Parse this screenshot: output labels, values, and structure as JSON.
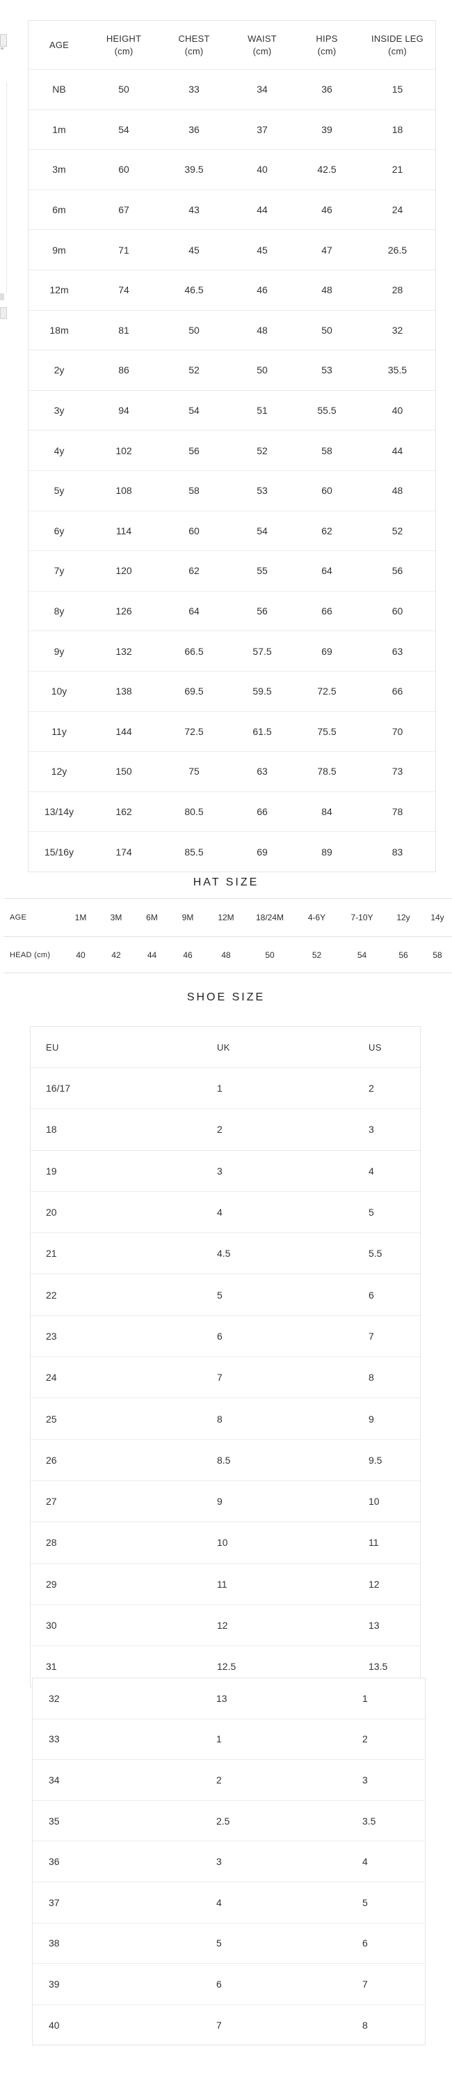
{
  "colors": {
    "background": "#ffffff",
    "text": "#333333",
    "title": "#222222",
    "border": "#e5e5e5",
    "row_separator": "#ececec"
  },
  "size_table": {
    "columns": [
      {
        "label": "AGE",
        "unit": ""
      },
      {
        "label": "HEIGHT",
        "unit": "(cm)"
      },
      {
        "label": "CHEST",
        "unit": "(cm)"
      },
      {
        "label": "WAIST",
        "unit": "(cm)"
      },
      {
        "label": "HIPS",
        "unit": "(cm)"
      },
      {
        "label": "INSIDE LEG",
        "unit": "(cm)"
      }
    ],
    "rows": [
      [
        "NB",
        "50",
        "33",
        "34",
        "36",
        "15"
      ],
      [
        "1m",
        "54",
        "36",
        "37",
        "39",
        "18"
      ],
      [
        "3m",
        "60",
        "39.5",
        "40",
        "42.5",
        "21"
      ],
      [
        "6m",
        "67",
        "43",
        "44",
        "46",
        "24"
      ],
      [
        "9m",
        "71",
        "45",
        "45",
        "47",
        "26.5"
      ],
      [
        "12m",
        "74",
        "46.5",
        "46",
        "48",
        "28"
      ],
      [
        "18m",
        "81",
        "50",
        "48",
        "50",
        "32"
      ],
      [
        "2y",
        "86",
        "52",
        "50",
        "53",
        "35.5"
      ],
      [
        "3y",
        "94",
        "54",
        "51",
        "55.5",
        "40"
      ],
      [
        "4y",
        "102",
        "56",
        "52",
        "58",
        "44"
      ],
      [
        "5y",
        "108",
        "58",
        "53",
        "60",
        "48"
      ],
      [
        "6y",
        "114",
        "60",
        "54",
        "62",
        "52"
      ],
      [
        "7y",
        "120",
        "62",
        "55",
        "64",
        "56"
      ],
      [
        "8y",
        "126",
        "64",
        "56",
        "66",
        "60"
      ],
      [
        "9y",
        "132",
        "66.5",
        "57.5",
        "69",
        "63"
      ],
      [
        "10y",
        "138",
        "69.5",
        "59.5",
        "72.5",
        "66"
      ],
      [
        "11y",
        "144",
        "72.5",
        "61.5",
        "75.5",
        "70"
      ],
      [
        "12y",
        "150",
        "75",
        "63",
        "78.5",
        "73"
      ],
      [
        "13/14y",
        "162",
        "80.5",
        "66",
        "84",
        "78"
      ],
      [
        "15/16y",
        "174",
        "85.5",
        "69",
        "89",
        "83"
      ]
    ]
  },
  "hat_size": {
    "title": "HAT SIZE",
    "rows": [
      [
        "AGE",
        "1M",
        "3M",
        "6M",
        "9M",
        "12M",
        "18/24M",
        "4-6Y",
        "7-10Y",
        "12y",
        "14y"
      ],
      [
        "HEAD (cm)",
        "40",
        "42",
        "44",
        "46",
        "48",
        "50",
        "52",
        "54",
        "56",
        "58"
      ]
    ]
  },
  "shoe_size": {
    "title": "SHOE SIZE",
    "columns": [
      "EU",
      "UK",
      "US"
    ],
    "rows_a": [
      [
        "16/17",
        "1",
        "2"
      ],
      [
        "18",
        "2",
        "3"
      ],
      [
        "19",
        "3",
        "4"
      ],
      [
        "20",
        "4",
        "5"
      ],
      [
        "21",
        "4.5",
        "5.5"
      ],
      [
        "22",
        "5",
        "6"
      ],
      [
        "23",
        "6",
        "7"
      ],
      [
        "24",
        "7",
        "8"
      ],
      [
        "25",
        "8",
        "9"
      ],
      [
        "26",
        "8.5",
        "9.5"
      ],
      [
        "27",
        "9",
        "10"
      ],
      [
        "28",
        "10",
        "11"
      ],
      [
        "29",
        "11",
        "12"
      ],
      [
        "30",
        "12",
        "13"
      ],
      [
        "31",
        "12.5",
        "13.5"
      ]
    ],
    "rows_b": [
      [
        "32",
        "13",
        "1"
      ],
      [
        "33",
        "1",
        "2"
      ],
      [
        "34",
        "2",
        "3"
      ],
      [
        "35",
        "2.5",
        "3.5"
      ],
      [
        "36",
        "3",
        "4"
      ],
      [
        "37",
        "4",
        "5"
      ],
      [
        "38",
        "5",
        "6"
      ],
      [
        "39",
        "6",
        "7"
      ],
      [
        "40",
        "7",
        "8"
      ]
    ]
  }
}
